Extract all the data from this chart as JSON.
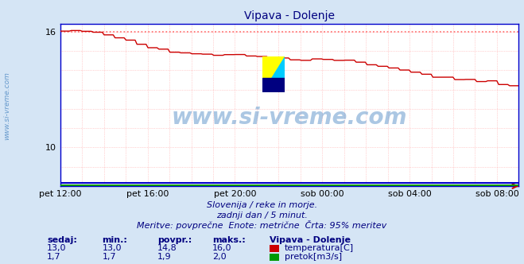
{
  "title": "Vipava - Dolenje",
  "bg_color": "#d5e5f5",
  "plot_bg_color": "#ffffff",
  "grid_color": "#ffaaaa",
  "xlabel_color": "#000080",
  "text_color": "#000080",
  "watermark_text": "www.si-vreme.com",
  "watermark_color": "#6699cc",
  "sidebar_text": "www.si-vreme.com",
  "sidebar_color": "#6699cc",
  "ylim": [
    8.0,
    16.4
  ],
  "ytick_positions": [
    10,
    16
  ],
  "ytick_labels": [
    "10",
    "16"
  ],
  "xtick_positions": [
    0,
    4,
    8,
    12,
    16,
    20
  ],
  "xtick_labels": [
    "pet 12:00",
    "pet 16:00",
    "pet 20:00",
    "sob 00:00",
    "sob 04:00",
    "sob 08:00"
  ],
  "temp_color": "#cc0000",
  "flow_color": "#009900",
  "height_color": "#0000cc",
  "dotted_line_color": "#ff6666",
  "dotted_line_y": 16.0,
  "axis_color": "#0000cc",
  "subtitle1": "Slovenija / reke in morje.",
  "subtitle2": "zadnji dan / 5 minut.",
  "subtitle3": "Meritve: povprečne  Enote: metrične  Črta: 95% meritev",
  "legend_title": "Vipava - Dolenje",
  "legend_items": [
    {
      "label": "temperatura[C]",
      "color": "#cc0000"
    },
    {
      "label": "pretok[m3/s]",
      "color": "#009900"
    }
  ],
  "stats_headers": [
    "sedaj:",
    "min.:",
    "povpr.:",
    "maks.:"
  ],
  "temp_row": [
    "13,0",
    "13,0",
    "14,8",
    "16,0"
  ],
  "flow_row": [
    "1,7",
    "1,7",
    "1,9",
    "2,0"
  ],
  "watermark_logo_colors": [
    "#ffff00",
    "#00ccff",
    "#000080"
  ],
  "n_points": 252,
  "xlim": [
    0,
    21
  ]
}
